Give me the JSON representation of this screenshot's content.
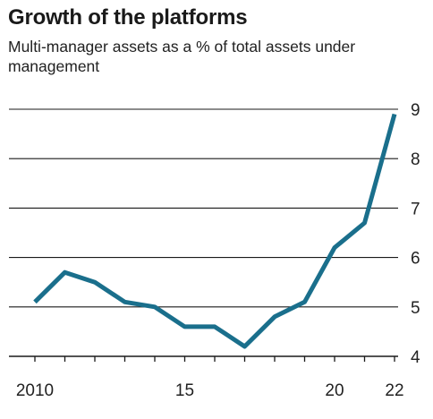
{
  "chart_data": {
    "type": "line",
    "title": "Growth of the platforms",
    "subtitle": "Multi-manager assets as a % of total assets under management",
    "xlabel": "",
    "ylabel": "",
    "x": [
      2010,
      2011,
      2012,
      2013,
      2014,
      2015,
      2016,
      2017,
      2018,
      2019,
      2020,
      2021,
      2022
    ],
    "series": [
      {
        "values": [
          5.1,
          5.7,
          5.5,
          5.1,
          5.0,
          4.6,
          4.6,
          4.2,
          4.8,
          5.1,
          6.2,
          6.7,
          8.9
        ]
      }
    ],
    "xlim": [
      2010,
      2022
    ],
    "ylim": [
      4,
      9
    ],
    "x_tick_values": [
      2010,
      2015,
      2020,
      2022
    ],
    "x_tick_labels": [
      "2010",
      "15",
      "20",
      "22"
    ],
    "x_minor_ticks": [
      2010,
      2011,
      2012,
      2013,
      2014,
      2015,
      2016,
      2017,
      2018,
      2019,
      2020,
      2021,
      2022
    ],
    "y_ticks": [
      4,
      5,
      6,
      7,
      8,
      9
    ],
    "y_tick_labels": [
      "4",
      "5",
      "6",
      "7",
      "8",
      "9"
    ],
    "y_axis_side": "right",
    "grid": "horizontal",
    "legend": "none",
    "colors": {
      "line": "#1a6f8c",
      "grid": "#1a1a1a",
      "text": "#222222"
    }
  }
}
